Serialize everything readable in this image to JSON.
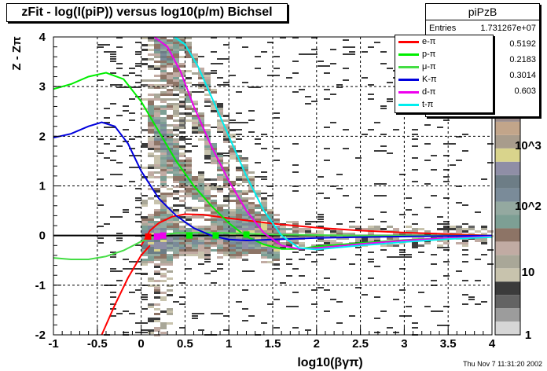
{
  "chart_data": {
    "type": "heatmap",
    "title": "zFit - log(I(piP)) versus log10(p/m) Bichsel",
    "xlabel": "log10(βγπ)",
    "ylabel": "Z - Zπ",
    "xlim": [
      -1,
      4
    ],
    "ylim": [
      -2,
      4
    ],
    "x_ticks": [
      "-1",
      "-0.5",
      "0",
      "0.5",
      "1",
      "1.5",
      "2",
      "2.5",
      "3",
      "3.5",
      "4"
    ],
    "y_ticks": [
      "-2",
      "-1",
      "0",
      "1",
      "2",
      "3",
      "4"
    ],
    "grid": true,
    "legend_position": "top-right",
    "series": [
      {
        "name": "e-π",
        "color": "#ff0000",
        "x": [
          0.0,
          0.1,
          0.2,
          0.35,
          0.5,
          0.7,
          1.0,
          1.5,
          2.0,
          2.5,
          3.0,
          3.5,
          4.0
        ],
        "y": [
          -0.2,
          0.1,
          0.25,
          0.38,
          0.43,
          0.42,
          0.35,
          0.24,
          0.16,
          0.1,
          0.06,
          0.03,
          0.0
        ]
      },
      {
        "name": "p-π",
        "color": "#00ee00",
        "x": [
          -1.0,
          -0.8,
          -0.6,
          -0.4,
          -0.2,
          0.0,
          0.2,
          0.4,
          0.6,
          0.8,
          1.0,
          1.2,
          1.4,
          1.6,
          1.8,
          2.0,
          2.5,
          3.0,
          3.5,
          4.0
        ],
        "y": [
          2.95,
          3.05,
          3.2,
          3.28,
          3.15,
          2.7,
          2.1,
          1.5,
          1.0,
          0.6,
          0.25,
          -0.02,
          -0.18,
          -0.27,
          -0.27,
          -0.22,
          -0.15,
          -0.09,
          -0.05,
          -0.02
        ]
      },
      {
        "name": "μ-π",
        "color": "#44dd44",
        "x": [
          -1.0,
          -0.8,
          -0.6,
          -0.4,
          -0.2,
          0.0,
          0.2,
          0.4,
          0.6,
          0.8,
          1.0,
          1.2,
          1.5,
          2.0,
          2.5,
          3.0,
          3.5,
          4.0
        ],
        "y": [
          -0.45,
          -0.48,
          -0.48,
          -0.42,
          -0.3,
          -0.12,
          0.0,
          0.05,
          0.06,
          0.06,
          0.05,
          0.04,
          0.02,
          0.01,
          0.0,
          0.0,
          0.0,
          0.0
        ]
      },
      {
        "name": "K-π",
        "color": "#0000dd",
        "x": [
          -1.0,
          -0.8,
          -0.6,
          -0.45,
          -0.3,
          -0.15,
          0.0,
          0.2,
          0.4,
          0.6,
          0.8,
          1.0,
          1.2,
          1.5,
          2.0,
          2.5,
          3.0,
          3.5,
          4.0
        ],
        "y": [
          1.97,
          2.05,
          2.2,
          2.28,
          2.2,
          1.85,
          1.3,
          0.75,
          0.4,
          0.15,
          0.0,
          -0.08,
          -0.1,
          -0.08,
          -0.05,
          -0.03,
          -0.02,
          -0.01,
          0.0
        ]
      },
      {
        "name": "d-π",
        "color": "#ee00ee",
        "x": [
          0.15,
          0.3,
          0.45,
          0.6,
          0.8,
          1.0,
          1.2,
          1.4,
          1.6,
          1.8,
          2.0,
          2.5,
          3.0,
          3.5,
          4.0
        ],
        "y": [
          4.0,
          3.8,
          3.3,
          2.6,
          1.8,
          1.1,
          0.5,
          0.05,
          -0.2,
          -0.27,
          -0.25,
          -0.17,
          -0.1,
          -0.05,
          -0.02
        ]
      },
      {
        "name": "t-π",
        "color": "#00eeee",
        "x": [
          0.38,
          0.5,
          0.65,
          0.8,
          1.0,
          1.2,
          1.4,
          1.6,
          1.8,
          2.0,
          2.5,
          3.0,
          3.5,
          4.0
        ],
        "y": [
          4.0,
          3.85,
          3.4,
          2.8,
          2.0,
          1.2,
          0.5,
          0.0,
          -0.25,
          -0.28,
          -0.2,
          -0.13,
          -0.07,
          -0.03
        ]
      }
    ]
  },
  "stats": {
    "title": "piPzB",
    "entries_label": "Entries",
    "entries_value": "1.731267e+07",
    "values": [
      "0.5192",
      "0.2183",
      "0.3014",
      "0.603"
    ]
  },
  "palette": {
    "labels": [
      "10^3",
      "10^2",
      "10",
      "1"
    ],
    "colors": [
      "#d6d6d6",
      "#9c9c9c",
      "#636363",
      "#3b3b3b",
      "#c8c3ad",
      "#a9a798",
      "#c1aba3",
      "#8d7466",
      "#7d9f94",
      "#94a9a0",
      "#7a8b99",
      "#6d7d86",
      "#8f8ea6",
      "#d9d48c",
      "#a89c8c",
      "#c2a58a",
      "#9c8d8d",
      "#8f6c74"
    ]
  },
  "footer": {
    "timestamp": "Thu Nov  7 11:31:20 2002"
  }
}
